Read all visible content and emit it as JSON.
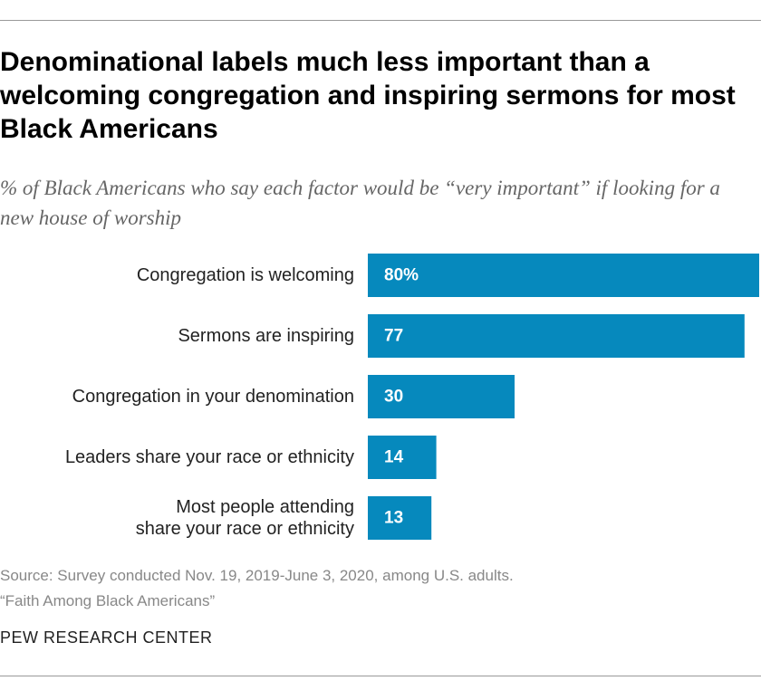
{
  "title": "Denominational labels much less important than a welcoming congregation and inspiring sermons for most Black Americans",
  "subtitle": "% of Black Americans who say each factor would be “very important” if looking for a new house of worship",
  "chart_data": {
    "type": "bar",
    "orientation": "horizontal",
    "categories": [
      [
        "Congregation is welcoming"
      ],
      [
        "Sermons are inspiring"
      ],
      [
        "Congregation in your denomination"
      ],
      [
        "Leaders share your race or ethnicity"
      ],
      [
        "Most people attending",
        "share your race or ethnicity"
      ]
    ],
    "values": [
      80,
      77,
      30,
      14,
      13
    ],
    "value_labels": [
      "80%",
      "77",
      "30",
      "14",
      "13"
    ],
    "bar_color": "#0689bd",
    "xlim": [
      0,
      80
    ],
    "grid": false,
    "legend": "none"
  },
  "source": {
    "line1": "Source: Survey conducted Nov. 19, 2019-June 3, 2020, among U.S. adults.",
    "line2": "“Faith Among Black Americans”"
  },
  "brand": "PEW RESEARCH CENTER"
}
